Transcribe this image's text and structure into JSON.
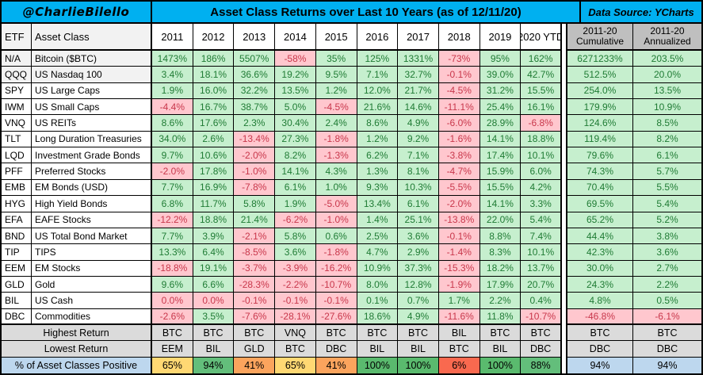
{
  "titlebar": {
    "handle": "@CharlieBilello",
    "title": "Asset Class Returns over Last 10 Years (as of 12/11/20)",
    "source": "Data Source: YCharts"
  },
  "colors": {
    "accent_cyan": "#00B0F0",
    "positive_bg": "#C6EFCE",
    "positive_text": "#1F7B34",
    "negative_bg": "#FFC7CE",
    "negative_text": "#C8374B",
    "right_header_gray": "#BFBFBF",
    "summary_gray": "#DBDBDB",
    "row_highlight_gray": "#F2F2F2",
    "light_blue": "#BDD7EE"
  },
  "chart_data": {
    "type": "table",
    "title": "Asset Class Returns over Last 10 Years (as of 12/11/20)",
    "columns": [
      "ETF",
      "Asset Class",
      "2011",
      "2012",
      "2013",
      "2014",
      "2015",
      "2016",
      "2017",
      "2018",
      "2019",
      "2020 YTD",
      "2011-20 Cumulative",
      "2011-20 Annualized"
    ],
    "right_headers": [
      {
        "line1": "2011-20",
        "line2": "Cumulative"
      },
      {
        "line1": "2011-20",
        "line2": "Annualized"
      }
    ],
    "rows": [
      {
        "etf": "N/A",
        "name": "Bitcoin ($BTC)",
        "values": [
          "1473%",
          "186%",
          "5507%",
          "-58%",
          "35%",
          "125%",
          "1331%",
          "-73%",
          "95%",
          "162%"
        ],
        "cumulative": "6271233%",
        "annualized": "203.5%",
        "highlight": true
      },
      {
        "etf": "QQQ",
        "name": "US Nasdaq 100",
        "values": [
          "3.4%",
          "18.1%",
          "36.6%",
          "19.2%",
          "9.5%",
          "7.1%",
          "32.7%",
          "-0.1%",
          "39.0%",
          "42.7%"
        ],
        "cumulative": "512.5%",
        "annualized": "20.0%",
        "highlight": true
      },
      {
        "etf": "SPY",
        "name": "US Large Caps",
        "values": [
          "1.9%",
          "16.0%",
          "32.2%",
          "13.5%",
          "1.2%",
          "12.0%",
          "21.7%",
          "-4.5%",
          "31.2%",
          "15.5%"
        ],
        "cumulative": "254.0%",
        "annualized": "13.5%",
        "highlight": false
      },
      {
        "etf": "IWM",
        "name": "US Small Caps",
        "values": [
          "-4.4%",
          "16.7%",
          "38.7%",
          "5.0%",
          "-4.5%",
          "21.6%",
          "14.6%",
          "-11.1%",
          "25.4%",
          "16.1%"
        ],
        "cumulative": "179.9%",
        "annualized": "10.9%",
        "highlight": false
      },
      {
        "etf": "VNQ",
        "name": "US REITs",
        "values": [
          "8.6%",
          "17.6%",
          "2.3%",
          "30.4%",
          "2.4%",
          "8.6%",
          "4.9%",
          "-6.0%",
          "28.9%",
          "-6.8%"
        ],
        "cumulative": "124.6%",
        "annualized": "8.5%",
        "highlight": false
      },
      {
        "etf": "TLT",
        "name": "Long Duration Treasuries",
        "values": [
          "34.0%",
          "2.6%",
          "-13.4%",
          "27.3%",
          "-1.8%",
          "1.2%",
          "9.2%",
          "-1.6%",
          "14.1%",
          "18.8%"
        ],
        "cumulative": "119.4%",
        "annualized": "8.2%",
        "highlight": false
      },
      {
        "etf": "LQD",
        "name": "Investment Grade Bonds",
        "values": [
          "9.7%",
          "10.6%",
          "-2.0%",
          "8.2%",
          "-1.3%",
          "6.2%",
          "7.1%",
          "-3.8%",
          "17.4%",
          "10.1%"
        ],
        "cumulative": "79.6%",
        "annualized": "6.1%",
        "highlight": false
      },
      {
        "etf": "PFF",
        "name": "Preferred Stocks",
        "values": [
          "-2.0%",
          "17.8%",
          "-1.0%",
          "14.1%",
          "4.3%",
          "1.3%",
          "8.1%",
          "-4.7%",
          "15.9%",
          "6.0%"
        ],
        "cumulative": "74.3%",
        "annualized": "5.7%",
        "highlight": false
      },
      {
        "etf": "EMB",
        "name": "EM Bonds (USD)",
        "values": [
          "7.7%",
          "16.9%",
          "-7.8%",
          "6.1%",
          "1.0%",
          "9.3%",
          "10.3%",
          "-5.5%",
          "15.5%",
          "4.2%"
        ],
        "cumulative": "70.4%",
        "annualized": "5.5%",
        "highlight": false
      },
      {
        "etf": "HYG",
        "name": "High Yield Bonds",
        "values": [
          "6.8%",
          "11.7%",
          "5.8%",
          "1.9%",
          "-5.0%",
          "13.4%",
          "6.1%",
          "-2.0%",
          "14.1%",
          "3.3%"
        ],
        "cumulative": "69.5%",
        "annualized": "5.4%",
        "highlight": false
      },
      {
        "etf": "EFA",
        "name": "EAFE Stocks",
        "values": [
          "-12.2%",
          "18.8%",
          "21.4%",
          "-6.2%",
          "-1.0%",
          "1.4%",
          "25.1%",
          "-13.8%",
          "22.0%",
          "5.4%"
        ],
        "cumulative": "65.2%",
        "annualized": "5.2%",
        "highlight": false
      },
      {
        "etf": "BND",
        "name": "US Total Bond Market",
        "values": [
          "7.7%",
          "3.9%",
          "-2.1%",
          "5.8%",
          "0.6%",
          "2.5%",
          "3.6%",
          "-0.1%",
          "8.8%",
          "7.4%"
        ],
        "cumulative": "44.4%",
        "annualized": "3.8%",
        "highlight": false
      },
      {
        "etf": "TIP",
        "name": "TIPS",
        "values": [
          "13.3%",
          "6.4%",
          "-8.5%",
          "3.6%",
          "-1.8%",
          "4.7%",
          "2.9%",
          "-1.4%",
          "8.3%",
          "10.1%"
        ],
        "cumulative": "42.3%",
        "annualized": "3.6%",
        "highlight": false
      },
      {
        "etf": "EEM",
        "name": "EM Stocks",
        "values": [
          "-18.8%",
          "19.1%",
          "-3.7%",
          "-3.9%",
          "-16.2%",
          "10.9%",
          "37.3%",
          "-15.3%",
          "18.2%",
          "13.7%"
        ],
        "cumulative": "30.0%",
        "annualized": "2.7%",
        "highlight": false
      },
      {
        "etf": "GLD",
        "name": "Gold",
        "values": [
          "9.6%",
          "6.6%",
          "-28.3%",
          "-2.2%",
          "-10.7%",
          "8.0%",
          "12.8%",
          "-1.9%",
          "17.9%",
          "20.7%"
        ],
        "cumulative": "24.3%",
        "annualized": "2.2%",
        "highlight": false
      },
      {
        "etf": "BIL",
        "name": "US Cash",
        "values": [
          "0.0%",
          "0.0%",
          "-0.1%",
          "-0.1%",
          "-0.1%",
          "0.1%",
          "0.7%",
          "1.7%",
          "2.2%",
          "0.4%"
        ],
        "cumulative": "4.8%",
        "annualized": "0.5%",
        "highlight": false
      },
      {
        "etf": "DBC",
        "name": "Commodities",
        "values": [
          "-2.6%",
          "3.5%",
          "-7.6%",
          "-28.1%",
          "-27.6%",
          "18.6%",
          "4.9%",
          "-11.6%",
          "11.8%",
          "-10.7%"
        ],
        "cumulative": "-46.8%",
        "annualized": "-6.1%",
        "highlight": false
      }
    ],
    "summary": {
      "highest": {
        "label": "Highest Return",
        "values": [
          "BTC",
          "BTC",
          "BTC",
          "VNQ",
          "BTC",
          "BTC",
          "BTC",
          "BIL",
          "BTC",
          "BTC"
        ],
        "cumulative": "BTC",
        "annualized": "BTC"
      },
      "lowest": {
        "label": "Lowest Return",
        "values": [
          "EEM",
          "BIL",
          "GLD",
          "BTC",
          "DBC",
          "BIL",
          "BIL",
          "BTC",
          "BIL",
          "DBC"
        ],
        "cumulative": "DBC",
        "annualized": "DBC"
      },
      "pct_positive": {
        "label": "% of Asset Classes Positive",
        "cells": [
          {
            "text": "65%",
            "bg": "#FFD873"
          },
          {
            "text": "94%",
            "bg": "#63BE7B"
          },
          {
            "text": "41%",
            "bg": "#FBA45D"
          },
          {
            "text": "65%",
            "bg": "#FFD873"
          },
          {
            "text": "41%",
            "bg": "#FBA45D"
          },
          {
            "text": "100%",
            "bg": "#5ABA6E"
          },
          {
            "text": "100%",
            "bg": "#5ABA6E"
          },
          {
            "text": "6%",
            "bg": "#F9694F"
          },
          {
            "text": "100%",
            "bg": "#5ABA6E"
          },
          {
            "text": "88%",
            "bg": "#63BE7B"
          }
        ],
        "cumulative": {
          "text": "94%",
          "bg": "#BDD7EE"
        },
        "annualized": {
          "text": "94%",
          "bg": "#BDD7EE"
        }
      }
    }
  }
}
